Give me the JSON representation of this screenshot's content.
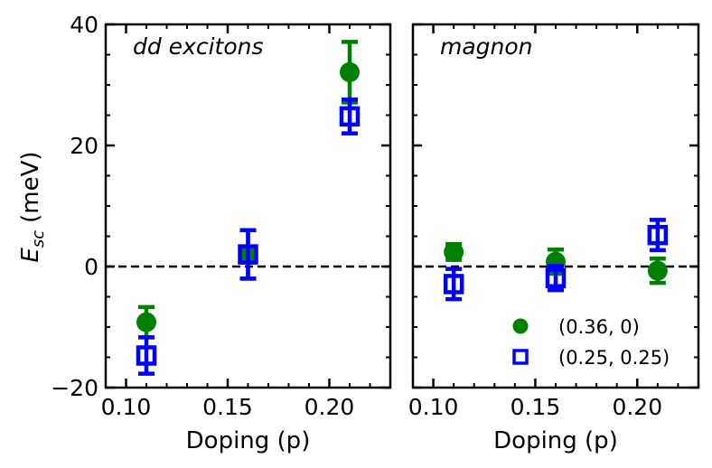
{
  "chart_data": {
    "type": "scatter",
    "ylabel_main": "E",
    "ylabel_sub": "sc",
    "ylabel_unit": "(meV)",
    "ylim": [
      -20,
      40
    ],
    "yticks": [
      -20,
      0,
      20,
      40
    ],
    "ytick_labels": [
      "−20",
      "0",
      "20",
      "40"
    ],
    "zero_line": true,
    "legend": {
      "location": "bottom-right of right panel",
      "entries": [
        {
          "label": "(0.36, 0)",
          "marker": "filled-circle",
          "color": "#008000"
        },
        {
          "label": "(0.25, 0.25)",
          "marker": "open-square",
          "color": "#0000ff"
        }
      ]
    },
    "panels": [
      {
        "title": "dd excitons",
        "xlabel": "Doping (p)",
        "xlim": [
          0.09,
          0.23
        ],
        "xticks": [
          0.1,
          0.15,
          0.2
        ],
        "xtick_labels": [
          "0.10",
          "0.15",
          "0.20"
        ],
        "series": [
          {
            "name": "(0.36, 0)",
            "color": "#008000",
            "marker": "circle",
            "x": [
              0.11,
              0.16,
              0.21
            ],
            "y": [
              -9.2,
              2.0,
              32.1
            ],
            "err": [
              2.5,
              4.0,
              5.0
            ]
          },
          {
            "name": "(0.25, 0.25)",
            "color": "#0000ff",
            "marker": "square",
            "x": [
              0.11,
              0.16,
              0.21
            ],
            "y": [
              -14.7,
              2.0,
              24.8
            ],
            "err": [
              3.0,
              4.0,
              2.8
            ]
          }
        ]
      },
      {
        "title": "magnon",
        "xlabel": "Doping (p)",
        "xlim": [
          0.09,
          0.23
        ],
        "xticks": [
          0.1,
          0.15,
          0.2
        ],
        "xtick_labels": [
          "0.10",
          "0.15",
          "0.20"
        ],
        "series": [
          {
            "name": "(0.36, 0)",
            "color": "#008000",
            "marker": "circle",
            "x": [
              0.11,
              0.16,
              0.21
            ],
            "y": [
              2.4,
              0.8,
              -0.7
            ],
            "err": [
              1.3,
              2.0,
              2.0
            ]
          },
          {
            "name": "(0.25, 0.25)",
            "color": "#0000ff",
            "marker": "square",
            "x": [
              0.11,
              0.16,
              0.21
            ],
            "y": [
              -2.9,
              -1.9,
              5.2
            ],
            "err": [
              2.5,
              2.0,
              2.5
            ]
          }
        ]
      }
    ]
  }
}
